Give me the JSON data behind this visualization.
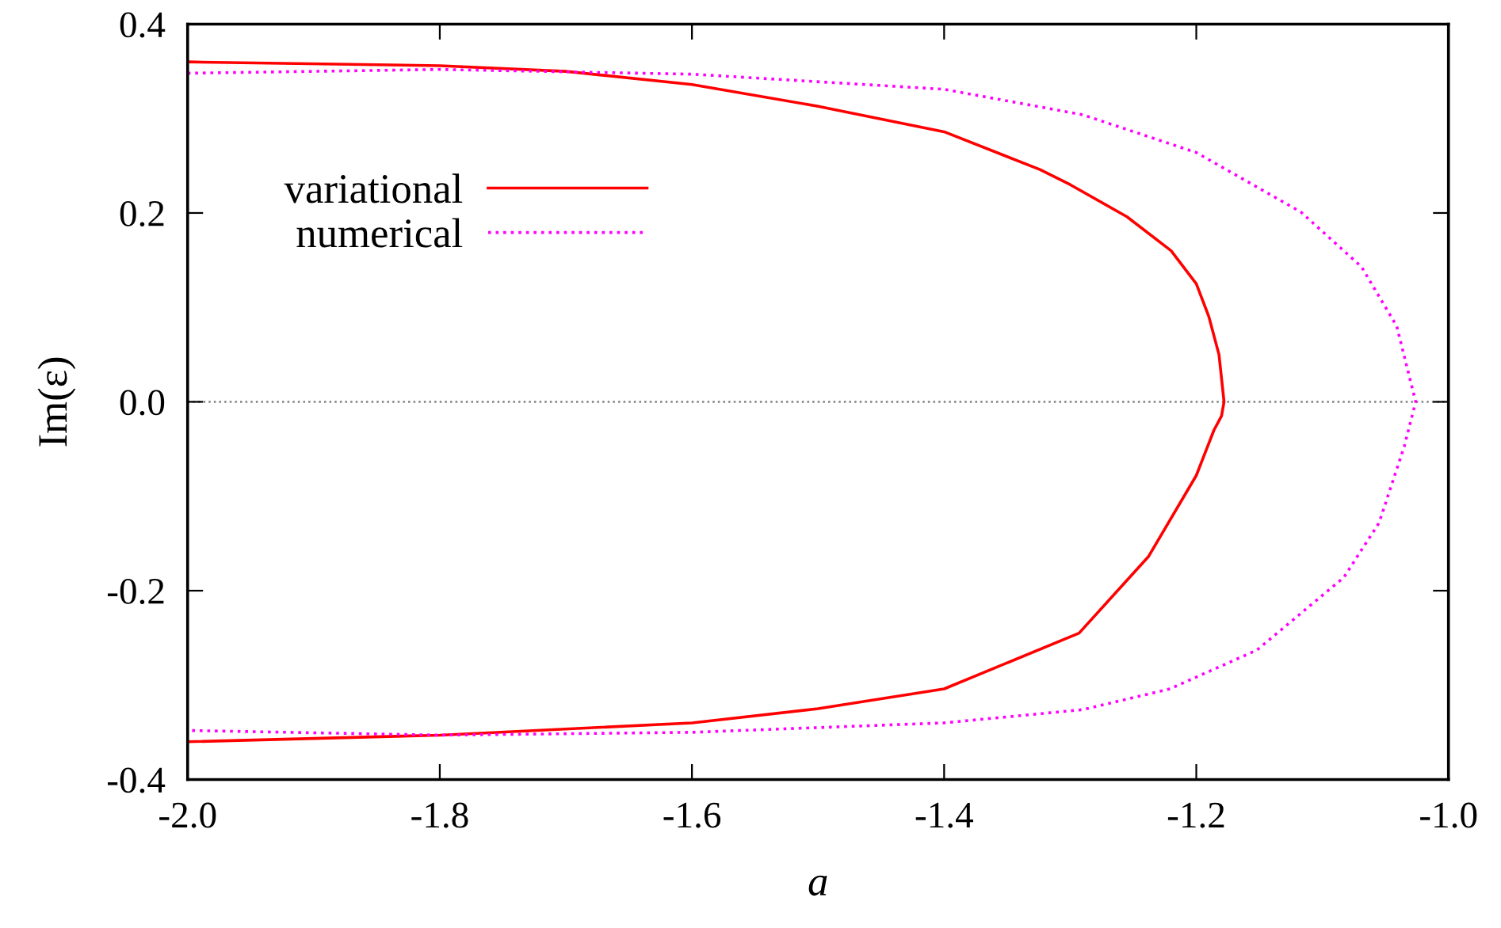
{
  "chart_data": {
    "type": "line",
    "xlabel": "a",
    "ylabel": "Im(ε)",
    "xlim": [
      -2.0,
      -1.0
    ],
    "ylim": [
      -0.4,
      0.4
    ],
    "xticks": [
      {
        "value": -2.0,
        "label": "-2.0"
      },
      {
        "value": -1.8,
        "label": "-1.8"
      },
      {
        "value": -1.6,
        "label": "-1.6"
      },
      {
        "value": -1.4,
        "label": "-1.4"
      },
      {
        "value": -1.2,
        "label": "-1.2"
      },
      {
        "value": -1.0,
        "label": "-1.0"
      }
    ],
    "yticks": [
      {
        "value": -0.4,
        "label": "-0.4"
      },
      {
        "value": -0.2,
        "label": "-0.2"
      },
      {
        "value": 0.0,
        "label": "0.0"
      },
      {
        "value": 0.2,
        "label": "0.2"
      },
      {
        "value": 0.4,
        "label": "0.4"
      }
    ],
    "grid": false,
    "legend": "top left",
    "marker": "none",
    "ref_lines": [
      {
        "axis": "y",
        "value": 0.0,
        "color": "#808080",
        "line_style": "dotted"
      }
    ],
    "series": [
      {
        "name": "variational",
        "color": "#ff0000",
        "line_style": "solid",
        "x": [
          -2.0,
          -1.8,
          -1.7,
          -1.6,
          -1.5,
          -1.4,
          -1.324,
          -1.3,
          -1.255,
          -1.22,
          -1.2,
          -1.19,
          -1.182,
          -1.178,
          -1.18,
          -1.186,
          -1.2,
          -1.238,
          -1.293,
          -1.4,
          -1.5,
          -1.6,
          -1.8,
          -2.0
        ],
        "values": [
          0.36,
          0.356,
          0.35,
          0.336,
          0.313,
          0.286,
          0.246,
          0.23,
          0.196,
          0.16,
          0.125,
          0.09,
          0.05,
          0.0,
          -0.015,
          -0.03,
          -0.078,
          -0.164,
          -0.245,
          -0.304,
          -0.325,
          -0.34,
          -0.353,
          -0.36
        ]
      },
      {
        "name": "numerical",
        "color": "#ff00ff",
        "line_style": "dotted",
        "x": [
          -2.0,
          -1.8,
          -1.6,
          -1.4,
          -1.29,
          -1.2,
          -1.117,
          -1.069,
          -1.041,
          -1.026,
          -1.035,
          -1.055,
          -1.083,
          -1.152,
          -1.221,
          -1.29,
          -1.4,
          -1.6,
          -1.8,
          -2.0
        ],
        "values": [
          0.348,
          0.352,
          0.347,
          0.331,
          0.304,
          0.264,
          0.201,
          0.143,
          0.08,
          0.0,
          -0.047,
          -0.128,
          -0.186,
          -0.263,
          -0.304,
          -0.326,
          -0.34,
          -0.35,
          -0.353,
          -0.348
        ]
      }
    ]
  }
}
